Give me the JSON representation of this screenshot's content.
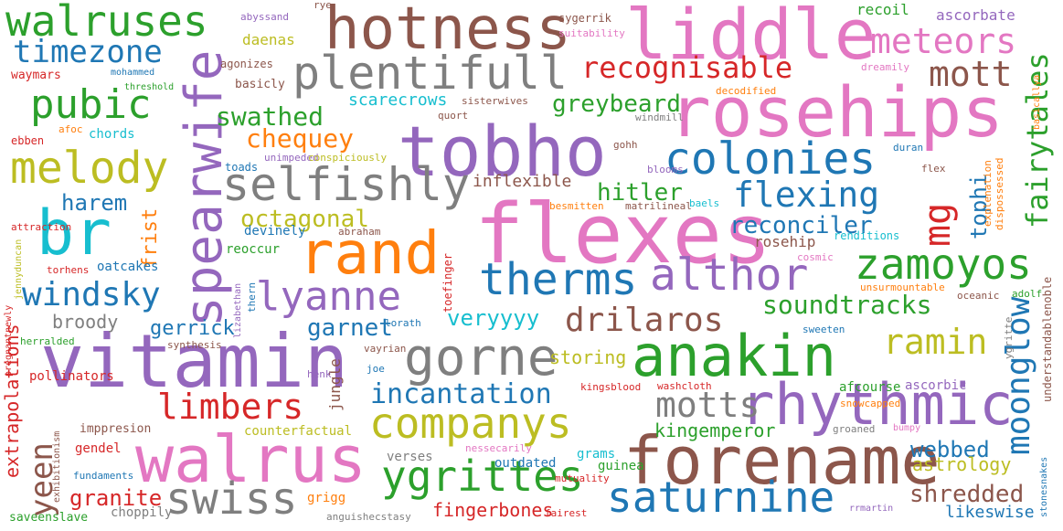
{
  "colors": {
    "blue": "#1f77b4",
    "orange": "#ff7f0e",
    "green": "#2ca02c",
    "red": "#d62728",
    "purple": "#9467bd",
    "brown": "#8c564b",
    "pink": "#e377c2",
    "gray": "#7f7f7f",
    "olive": "#bcbd22",
    "cyan": "#17becf"
  },
  "words": [
    {
      "text": "flexes",
      "color": "pink"
    },
    {
      "text": "vitamin",
      "color": "purple"
    },
    {
      "text": "rosehips",
      "color": "pink"
    },
    {
      "text": "tobho",
      "color": "purple"
    },
    {
      "text": "liddle",
      "color": "pink"
    },
    {
      "text": "walrus",
      "color": "pink"
    },
    {
      "text": "forename",
      "color": "brown"
    },
    {
      "text": "rhythmic",
      "color": "purple"
    },
    {
      "text": "anakin",
      "color": "green"
    },
    {
      "text": "spearwife",
      "color": "purple"
    },
    {
      "text": "hotness",
      "color": "brown"
    },
    {
      "text": "br",
      "color": "cyan"
    },
    {
      "text": "rand",
      "color": "orange"
    },
    {
      "text": "companys",
      "color": "olive"
    },
    {
      "text": "gorne",
      "color": "gray"
    },
    {
      "text": "ygrittes",
      "color": "green"
    },
    {
      "text": "plentifull",
      "color": "gray"
    },
    {
      "text": "selfishly",
      "color": "gray"
    },
    {
      "text": "colonies",
      "color": "blue"
    },
    {
      "text": "saturnine",
      "color": "blue"
    },
    {
      "text": "walruses",
      "color": "green"
    },
    {
      "text": "melody",
      "color": "olive"
    },
    {
      "text": "swiss",
      "color": "gray"
    },
    {
      "text": "althor",
      "color": "purple"
    },
    {
      "text": "therms",
      "color": "blue"
    },
    {
      "text": "zamoyos",
      "color": "green"
    },
    {
      "text": "lyanne",
      "color": "purple"
    },
    {
      "text": "flexing",
      "color": "blue"
    },
    {
      "text": "meteors",
      "color": "pink"
    },
    {
      "text": "pubic",
      "color": "green"
    },
    {
      "text": "limbers",
      "color": "red"
    },
    {
      "text": "motts",
      "color": "gray"
    },
    {
      "text": "drilaros",
      "color": "brown"
    },
    {
      "text": "ramin",
      "color": "olive"
    },
    {
      "text": "incantation",
      "color": "blue"
    },
    {
      "text": "recognisable",
      "color": "red"
    },
    {
      "text": "moonglow",
      "color": "blue"
    },
    {
      "text": "mg",
      "color": "red"
    },
    {
      "text": "mott",
      "color": "brown"
    },
    {
      "text": "windsky",
      "color": "blue"
    },
    {
      "text": "timezone",
      "color": "blue"
    },
    {
      "text": "fairytales",
      "color": "green"
    },
    {
      "text": "soundtracks",
      "color": "green"
    },
    {
      "text": "swathed",
      "color": "green"
    },
    {
      "text": "greybeard",
      "color": "green"
    },
    {
      "text": "chequey",
      "color": "orange"
    },
    {
      "text": "octagonal",
      "color": "olive"
    },
    {
      "text": "reconciler",
      "color": "blue"
    },
    {
      "text": "hitler",
      "color": "green"
    },
    {
      "text": "tophi",
      "color": "blue"
    },
    {
      "text": "yeen",
      "color": "brown"
    },
    {
      "text": "garnet",
      "color": "blue"
    },
    {
      "text": "gerrick",
      "color": "blue"
    },
    {
      "text": "veryyyy",
      "color": "cyan"
    },
    {
      "text": "harem",
      "color": "blue"
    },
    {
      "text": "webbed",
      "color": "blue"
    },
    {
      "text": "shredded",
      "color": "brown"
    },
    {
      "text": "granite",
      "color": "red"
    },
    {
      "text": "extrapolations",
      "color": "red"
    },
    {
      "text": "frist",
      "color": "orange"
    },
    {
      "text": "kingemperor",
      "color": "green"
    },
    {
      "text": "broody",
      "color": "gray"
    },
    {
      "text": "storing",
      "color": "olive"
    },
    {
      "text": "fingerbones",
      "color": "red"
    },
    {
      "text": "astrology",
      "color": "olive"
    },
    {
      "text": "likeswise",
      "color": "blue"
    },
    {
      "text": "inflexible",
      "color": "brown"
    },
    {
      "text": "scarecrows",
      "color": "cyan"
    },
    {
      "text": "rosehip",
      "color": "brown"
    },
    {
      "text": "daenas",
      "color": "olive"
    },
    {
      "text": "recoil",
      "color": "green"
    },
    {
      "text": "ascorbate",
      "color": "purple"
    },
    {
      "text": "jungle",
      "color": "brown"
    },
    {
      "text": "oatcakes",
      "color": "blue"
    },
    {
      "text": "pollinators",
      "color": "red"
    },
    {
      "text": "reoccur",
      "color": "green"
    },
    {
      "text": "devinely",
      "color": "blue"
    },
    {
      "text": "afcourse",
      "color": "green"
    },
    {
      "text": "ascorbic",
      "color": "purple"
    },
    {
      "text": "gendel",
      "color": "red"
    },
    {
      "text": "grams",
      "color": "cyan"
    },
    {
      "text": "guinea",
      "color": "green"
    },
    {
      "text": "counterfactual",
      "color": "olive"
    },
    {
      "text": "verses",
      "color": "gray"
    },
    {
      "text": "grigg",
      "color": "orange"
    },
    {
      "text": "choppily",
      "color": "gray"
    },
    {
      "text": "outdated",
      "color": "blue"
    },
    {
      "text": "imppresion",
      "color": "brown"
    },
    {
      "text": "fundaments",
      "color": "blue"
    },
    {
      "text": "saveenslave",
      "color": "green"
    },
    {
      "text": "chords",
      "color": "cyan"
    },
    {
      "text": "basicly",
      "color": "brown"
    },
    {
      "text": "toads",
      "color": "blue"
    },
    {
      "text": "attraction",
      "color": "red"
    },
    {
      "text": "torhens",
      "color": "red"
    },
    {
      "text": "ebben",
      "color": "red"
    },
    {
      "text": "waymars",
      "color": "red"
    },
    {
      "text": "agonizes",
      "color": "brown"
    },
    {
      "text": "mohammed",
      "color": "blue"
    },
    {
      "text": "threshold",
      "color": "green"
    },
    {
      "text": "afoc",
      "color": "orange"
    },
    {
      "text": "abyssand",
      "color": "purple"
    },
    {
      "text": "rye",
      "color": "brown"
    },
    {
      "text": "sygerrik",
      "color": "brown"
    },
    {
      "text": "suitability",
      "color": "pink"
    },
    {
      "text": "dreamily",
      "color": "pink"
    },
    {
      "text": "decodified",
      "color": "orange"
    },
    {
      "text": "sisterwives",
      "color": "brown"
    },
    {
      "text": "quort",
      "color": "brown"
    },
    {
      "text": "windmill",
      "color": "gray"
    },
    {
      "text": "gohh",
      "color": "brown"
    },
    {
      "text": "duran",
      "color": "blue"
    },
    {
      "text": "unimpeded",
      "color": "purple"
    },
    {
      "text": "conspiciously",
      "color": "olive"
    },
    {
      "text": "blooms",
      "color": "purple"
    },
    {
      "text": "flex",
      "color": "brown"
    },
    {
      "text": "besmitten",
      "color": "orange"
    },
    {
      "text": "matrilineal",
      "color": "brown"
    },
    {
      "text": "baels",
      "color": "cyan"
    },
    {
      "text": "abraham",
      "color": "brown"
    },
    {
      "text": "renditions",
      "color": "cyan"
    },
    {
      "text": "cosmic",
      "color": "pink"
    },
    {
      "text": "unsurmountable",
      "color": "orange"
    },
    {
      "text": "oceanic",
      "color": "brown"
    },
    {
      "text": "adolf",
      "color": "green"
    },
    {
      "text": "thern",
      "color": "blue"
    },
    {
      "text": "toefinger",
      "color": "red"
    },
    {
      "text": "lorath",
      "color": "blue"
    },
    {
      "text": "vayrian",
      "color": "brown"
    },
    {
      "text": "synthesis",
      "color": "brown"
    },
    {
      "text": "lizabethan",
      "color": "purple"
    },
    {
      "text": "joe",
      "color": "blue"
    },
    {
      "text": "henk",
      "color": "purple"
    },
    {
      "text": "herralded",
      "color": "green"
    },
    {
      "text": "pregnantnewly",
      "color": "red"
    },
    {
      "text": "exhibitionism",
      "color": "brown"
    },
    {
      "text": "jennyduncan",
      "color": "olive"
    },
    {
      "text": "sweeten",
      "color": "blue"
    },
    {
      "text": "ygritte",
      "color": "gray"
    },
    {
      "text": "understandablenoble",
      "color": "brown"
    },
    {
      "text": "snowcapped",
      "color": "orange"
    },
    {
      "text": "kingsblood",
      "color": "red"
    },
    {
      "text": "washcloth",
      "color": "red"
    },
    {
      "text": "groaned",
      "color": "gray"
    },
    {
      "text": "bumpy",
      "color": "pink"
    },
    {
      "text": "nessecarily",
      "color": "pink"
    },
    {
      "text": "mutuality",
      "color": "red"
    },
    {
      "text": "fairest",
      "color": "red"
    },
    {
      "text": "anguishecstasy",
      "color": "gray"
    },
    {
      "text": "rrmartin",
      "color": "purple"
    },
    {
      "text": "stonesnakes",
      "color": "blue"
    },
    {
      "text": "explenation",
      "color": "orange"
    },
    {
      "text": "dispossessed",
      "color": "orange"
    },
    {
      "text": "basicallya",
      "color": "orange"
    }
  ]
}
